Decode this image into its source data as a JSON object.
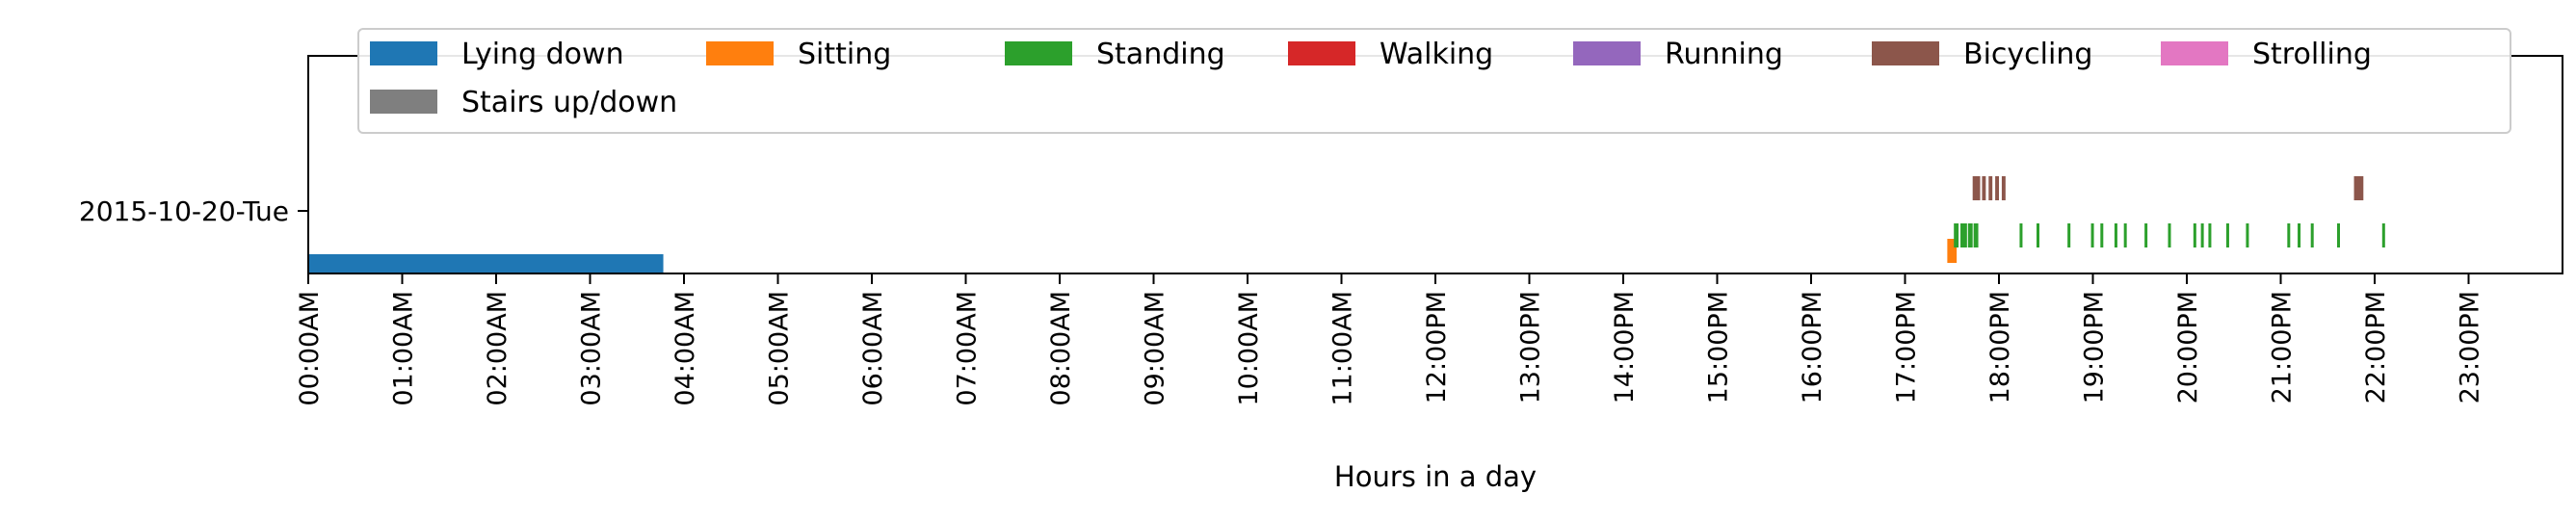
{
  "chart_data": {
    "type": "timeline",
    "xlabel": "Hours in a day",
    "x_unit": "hours",
    "xlim": [
      0,
      24
    ],
    "x_ticks": [
      {
        "value": 0,
        "label": "00:00AM"
      },
      {
        "value": 1,
        "label": "01:00AM"
      },
      {
        "value": 2,
        "label": "02:00AM"
      },
      {
        "value": 3,
        "label": "03:00AM"
      },
      {
        "value": 4,
        "label": "04:00AM"
      },
      {
        "value": 5,
        "label": "05:00AM"
      },
      {
        "value": 6,
        "label": "06:00AM"
      },
      {
        "value": 7,
        "label": "07:00AM"
      },
      {
        "value": 8,
        "label": "08:00AM"
      },
      {
        "value": 9,
        "label": "09:00AM"
      },
      {
        "value": 10,
        "label": "10:00AM"
      },
      {
        "value": 11,
        "label": "11:00AM"
      },
      {
        "value": 12,
        "label": "12:00PM"
      },
      {
        "value": 13,
        "label": "13:00PM"
      },
      {
        "value": 14,
        "label": "14:00PM"
      },
      {
        "value": 15,
        "label": "15:00PM"
      },
      {
        "value": 16,
        "label": "16:00PM"
      },
      {
        "value": 17,
        "label": "17:00PM"
      },
      {
        "value": 18,
        "label": "18:00PM"
      },
      {
        "value": 19,
        "label": "19:00PM"
      },
      {
        "value": 20,
        "label": "20:00PM"
      },
      {
        "value": 21,
        "label": "21:00PM"
      },
      {
        "value": 22,
        "label": "22:00PM"
      },
      {
        "value": 23,
        "label": "23:00PM"
      }
    ],
    "days": [
      "2015-10-20-Tue"
    ],
    "legend_position": "top",
    "grid": false,
    "series": [
      {
        "name": "Lying down",
        "color": "#1f77b4",
        "intervals": [
          [
            0.0,
            3.78
          ]
        ]
      },
      {
        "name": "Sitting",
        "color": "#ff7f0e",
        "intervals": [
          [
            17.45,
            17.55
          ]
        ]
      },
      {
        "name": "Standing",
        "color": "#2ca02c",
        "intervals": [
          [
            17.52,
            17.57
          ],
          [
            17.59,
            17.66
          ],
          [
            17.67,
            17.72
          ],
          [
            17.73,
            17.78
          ],
          [
            18.22,
            18.25
          ],
          [
            18.4,
            18.43
          ],
          [
            18.73,
            18.76
          ],
          [
            18.98,
            19.01
          ],
          [
            19.08,
            19.11
          ],
          [
            19.23,
            19.26
          ],
          [
            19.33,
            19.36
          ],
          [
            19.55,
            19.58
          ],
          [
            19.8,
            19.83
          ],
          [
            20.07,
            20.1
          ],
          [
            20.15,
            20.18
          ],
          [
            20.23,
            20.26
          ],
          [
            20.42,
            20.45
          ],
          [
            20.63,
            20.66
          ],
          [
            21.07,
            21.1
          ],
          [
            21.18,
            21.21
          ],
          [
            21.32,
            21.35
          ],
          [
            21.6,
            21.63
          ],
          [
            22.08,
            22.11
          ]
        ]
      },
      {
        "name": "Walking",
        "color": "#d62728",
        "intervals": []
      },
      {
        "name": "Running",
        "color": "#9467bd",
        "intervals": []
      },
      {
        "name": "Bicycling",
        "color": "#8c564b",
        "intervals": [
          [
            17.72,
            17.8
          ],
          [
            17.82,
            17.86
          ],
          [
            17.89,
            17.93
          ],
          [
            17.96,
            18.0
          ],
          [
            18.03,
            18.07
          ],
          [
            21.78,
            21.88
          ]
        ]
      },
      {
        "name": "Strolling",
        "color": "#e377c2",
        "intervals": []
      },
      {
        "name": "Stairs up/down",
        "color": "#7f7f7f",
        "intervals": []
      }
    ]
  }
}
